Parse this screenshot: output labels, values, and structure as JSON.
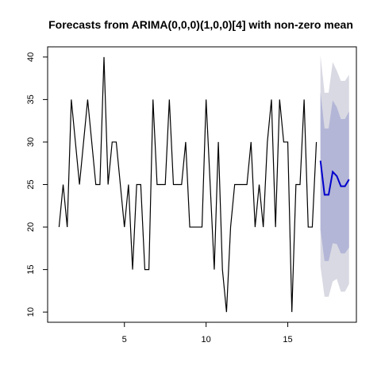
{
  "chart_data": {
    "type": "line",
    "title": "Forecasts from ARIMA(0,0,0)(1,0,0)[4] with non-zero mean",
    "xlabel": "",
    "ylabel": "",
    "xlim": [
      0.3,
      19.2
    ],
    "ylim": [
      8.8,
      41.2
    ],
    "x_ticks": [
      5,
      10,
      15
    ],
    "y_ticks": [
      10,
      15,
      20,
      25,
      30,
      35,
      40
    ],
    "grid": false,
    "colors": {
      "history": "#000000",
      "forecast": "#0000cd",
      "pi80": "#b3b6d6",
      "pi95": "#d9d9e3"
    },
    "series": [
      {
        "role": "history",
        "x": [
          1,
          1.25,
          1.5,
          1.75,
          2,
          2.25,
          2.5,
          2.75,
          3,
          3.25,
          3.5,
          3.75,
          4,
          4.25,
          4.5,
          4.75,
          5,
          5.25,
          5.5,
          5.75,
          6,
          6.25,
          6.5,
          6.75,
          7,
          7.25,
          7.5,
          7.75,
          8,
          8.25,
          8.5,
          8.75,
          9,
          9.25,
          9.5,
          9.75,
          10,
          10.25,
          10.5,
          10.75,
          11,
          11.25,
          11.5,
          11.75,
          12,
          12.25,
          12.5,
          12.75,
          13,
          13.25,
          13.5,
          13.75,
          14,
          14.25,
          14.5,
          14.75,
          15,
          15.25,
          15.5,
          15.75,
          16,
          16.25,
          16.5,
          16.75
        ],
        "values": [
          20,
          25,
          20,
          35,
          30,
          25,
          30,
          35,
          30,
          25,
          25,
          40,
          25,
          30,
          30,
          25,
          20,
          25,
          15,
          25,
          25,
          15,
          15,
          35,
          25,
          25,
          25,
          35,
          25,
          25,
          25,
          30,
          20,
          20,
          20,
          20,
          35,
          25,
          15,
          30,
          15,
          10,
          20,
          25,
          25,
          25,
          25,
          30,
          20,
          25,
          20,
          30,
          35,
          20,
          35,
          30,
          30,
          10,
          25,
          25,
          35,
          20,
          20,
          30
        ]
      },
      {
        "role": "forecast",
        "x": [
          17,
          17.25,
          17.5,
          17.75,
          18,
          18.25,
          18.5,
          18.75
        ],
        "values": [
          27.8,
          23.8,
          23.8,
          26.5,
          26.0,
          24.8,
          24.8,
          25.6
        ],
        "lo80": [
          19.7,
          16.0,
          16.0,
          18.1,
          18.0,
          16.9,
          16.9,
          17.6
        ],
        "hi80": [
          35.9,
          31.6,
          31.6,
          34.9,
          34.1,
          32.7,
          32.7,
          33.6
        ],
        "lo95": [
          15.4,
          11.8,
          11.8,
          13.6,
          13.9,
          12.4,
          12.4,
          13.3
        ],
        "hi95": [
          40.2,
          35.8,
          35.8,
          39.4,
          38.4,
          37.2,
          37.2,
          37.9
        ]
      }
    ]
  }
}
